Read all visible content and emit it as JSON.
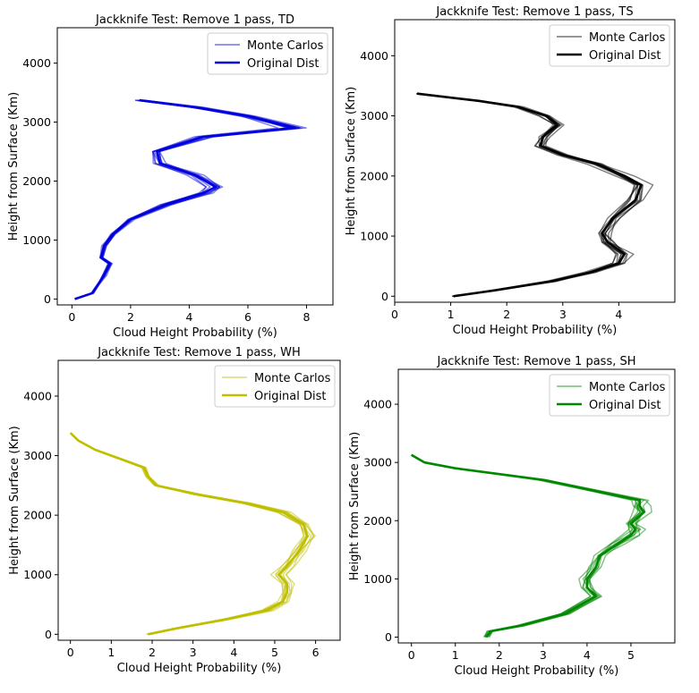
{
  "chart_data": [
    {
      "type": "line",
      "title": "Jackknife Test: Remove 1 pass, TD",
      "xlabel": "Cloud Height Probability (%)",
      "ylabel": "Height from Surface (Km)",
      "xlim": [
        -0.5,
        8.9
      ],
      "ylim": [
        -100,
        4600
      ],
      "xticks": [
        0,
        2,
        4,
        6,
        8
      ],
      "yticks": [
        0,
        1000,
        2000,
        3000,
        4000
      ],
      "grid": false,
      "legend_position": "top-right",
      "color": "#0000dd",
      "legend": [
        "Monte Carlos",
        "Original Dist"
      ],
      "n_monte_carlo": 10,
      "spread": 0.09,
      "series": [
        {
          "name": "Original Dist",
          "x": [
            0.1,
            0.7,
            0.9,
            1.1,
            1.3,
            1.0,
            1.1,
            1.4,
            2.0,
            3.2,
            4.5,
            4.9,
            4.2,
            3.0,
            2.9,
            4.5,
            7.6,
            6.0,
            4.2,
            2.3
          ],
          "y": [
            0,
            100,
            250,
            400,
            600,
            700,
            900,
            1100,
            1350,
            1600,
            1800,
            1900,
            2100,
            2300,
            2500,
            2750,
            2900,
            3100,
            3250,
            3370
          ]
        }
      ]
    },
    {
      "type": "line",
      "title": "Jackknife Test: Remove 1 pass, TS",
      "xlabel": "Cloud Height Probability (%)",
      "ylabel": "Height from Surface (Km)",
      "xlim": [
        0,
        5
      ],
      "ylim": [
        -100,
        4600
      ],
      "xticks": [
        0,
        1,
        2,
        3,
        4
      ],
      "yticks": [
        0,
        1000,
        2000,
        3000,
        4000
      ],
      "grid": false,
      "legend_position": "top-right",
      "color": "#000000",
      "legend": [
        "Monte Carlos",
        "Original Dist"
      ],
      "n_monte_carlo": 10,
      "spread": 0.05,
      "series": [
        {
          "name": "Original Dist",
          "x": [
            1.05,
            1.8,
            2.8,
            3.5,
            4.0,
            4.1,
            3.8,
            3.7,
            3.9,
            4.3,
            4.4,
            4.1,
            3.6,
            3.0,
            2.6,
            2.65,
            2.9,
            2.7,
            2.2,
            1.5,
            0.4
          ],
          "y": [
            0,
            100,
            250,
            400,
            550,
            700,
            900,
            1050,
            1300,
            1600,
            1850,
            2000,
            2200,
            2350,
            2500,
            2650,
            2850,
            3000,
            3150,
            3250,
            3370
          ]
        }
      ]
    },
    {
      "type": "line",
      "title": "Jackknife Test: Remove 1 pass, WH",
      "xlabel": "Cloud Height Probability (%)",
      "ylabel": "Height from Surface (Km)",
      "xlim": [
        -0.3,
        6.6
      ],
      "ylim": [
        -100,
        4600
      ],
      "xticks": [
        0,
        1,
        2,
        3,
        4,
        5,
        6
      ],
      "yticks": [
        0,
        1000,
        2000,
        3000,
        4000
      ],
      "grid": false,
      "legend_position": "top-right",
      "color": "#bfbf00",
      "legend": [
        "Monte Carlos",
        "Original Dist"
      ],
      "n_monte_carlo": 10,
      "spread": 0.04,
      "series": [
        {
          "name": "Original Dist",
          "x": [
            1.9,
            2.6,
            3.8,
            4.8,
            5.2,
            5.3,
            5.3,
            5.1,
            5.3,
            5.6,
            5.8,
            5.7,
            5.2,
            4.3,
            3.1,
            2.1,
            1.9,
            1.8,
            1.2,
            0.6,
            0.2,
            0.0
          ],
          "y": [
            0,
            100,
            250,
            400,
            550,
            700,
            850,
            1000,
            1150,
            1400,
            1650,
            1850,
            2050,
            2200,
            2350,
            2500,
            2650,
            2800,
            2950,
            3100,
            3250,
            3380
          ]
        }
      ]
    },
    {
      "type": "line",
      "title": "Jackknife Test: Remove 1 pass, SH",
      "xlabel": "Cloud Height Probability (%)",
      "ylabel": "Height from Surface (Km)",
      "xlim": [
        -0.3,
        6.0
      ],
      "ylim": [
        -100,
        4600
      ],
      "xticks": [
        0,
        1,
        2,
        3,
        4,
        5
      ],
      "yticks": [
        0,
        1000,
        2000,
        3000,
        4000
      ],
      "grid": false,
      "legend_position": "top-right",
      "color": "#008800",
      "legend": [
        "Monte Carlos",
        "Original Dist"
      ],
      "n_monte_carlo": 10,
      "spread": 0.05,
      "series": [
        {
          "name": "Original Dist",
          "x": [
            1.7,
            1.8,
            2.5,
            3.5,
            4.2,
            4.0,
            4.0,
            4.2,
            4.3,
            4.7,
            5.0,
            5.1,
            5.0,
            5.3,
            5.2,
            5.2,
            3.0,
            1.0,
            0.3,
            0.0
          ],
          "y": [
            0,
            100,
            200,
            400,
            700,
            850,
            1000,
            1200,
            1400,
            1600,
            1750,
            1850,
            1950,
            2150,
            2250,
            2350,
            2700,
            2900,
            3000,
            3130
          ]
        }
      ]
    }
  ]
}
